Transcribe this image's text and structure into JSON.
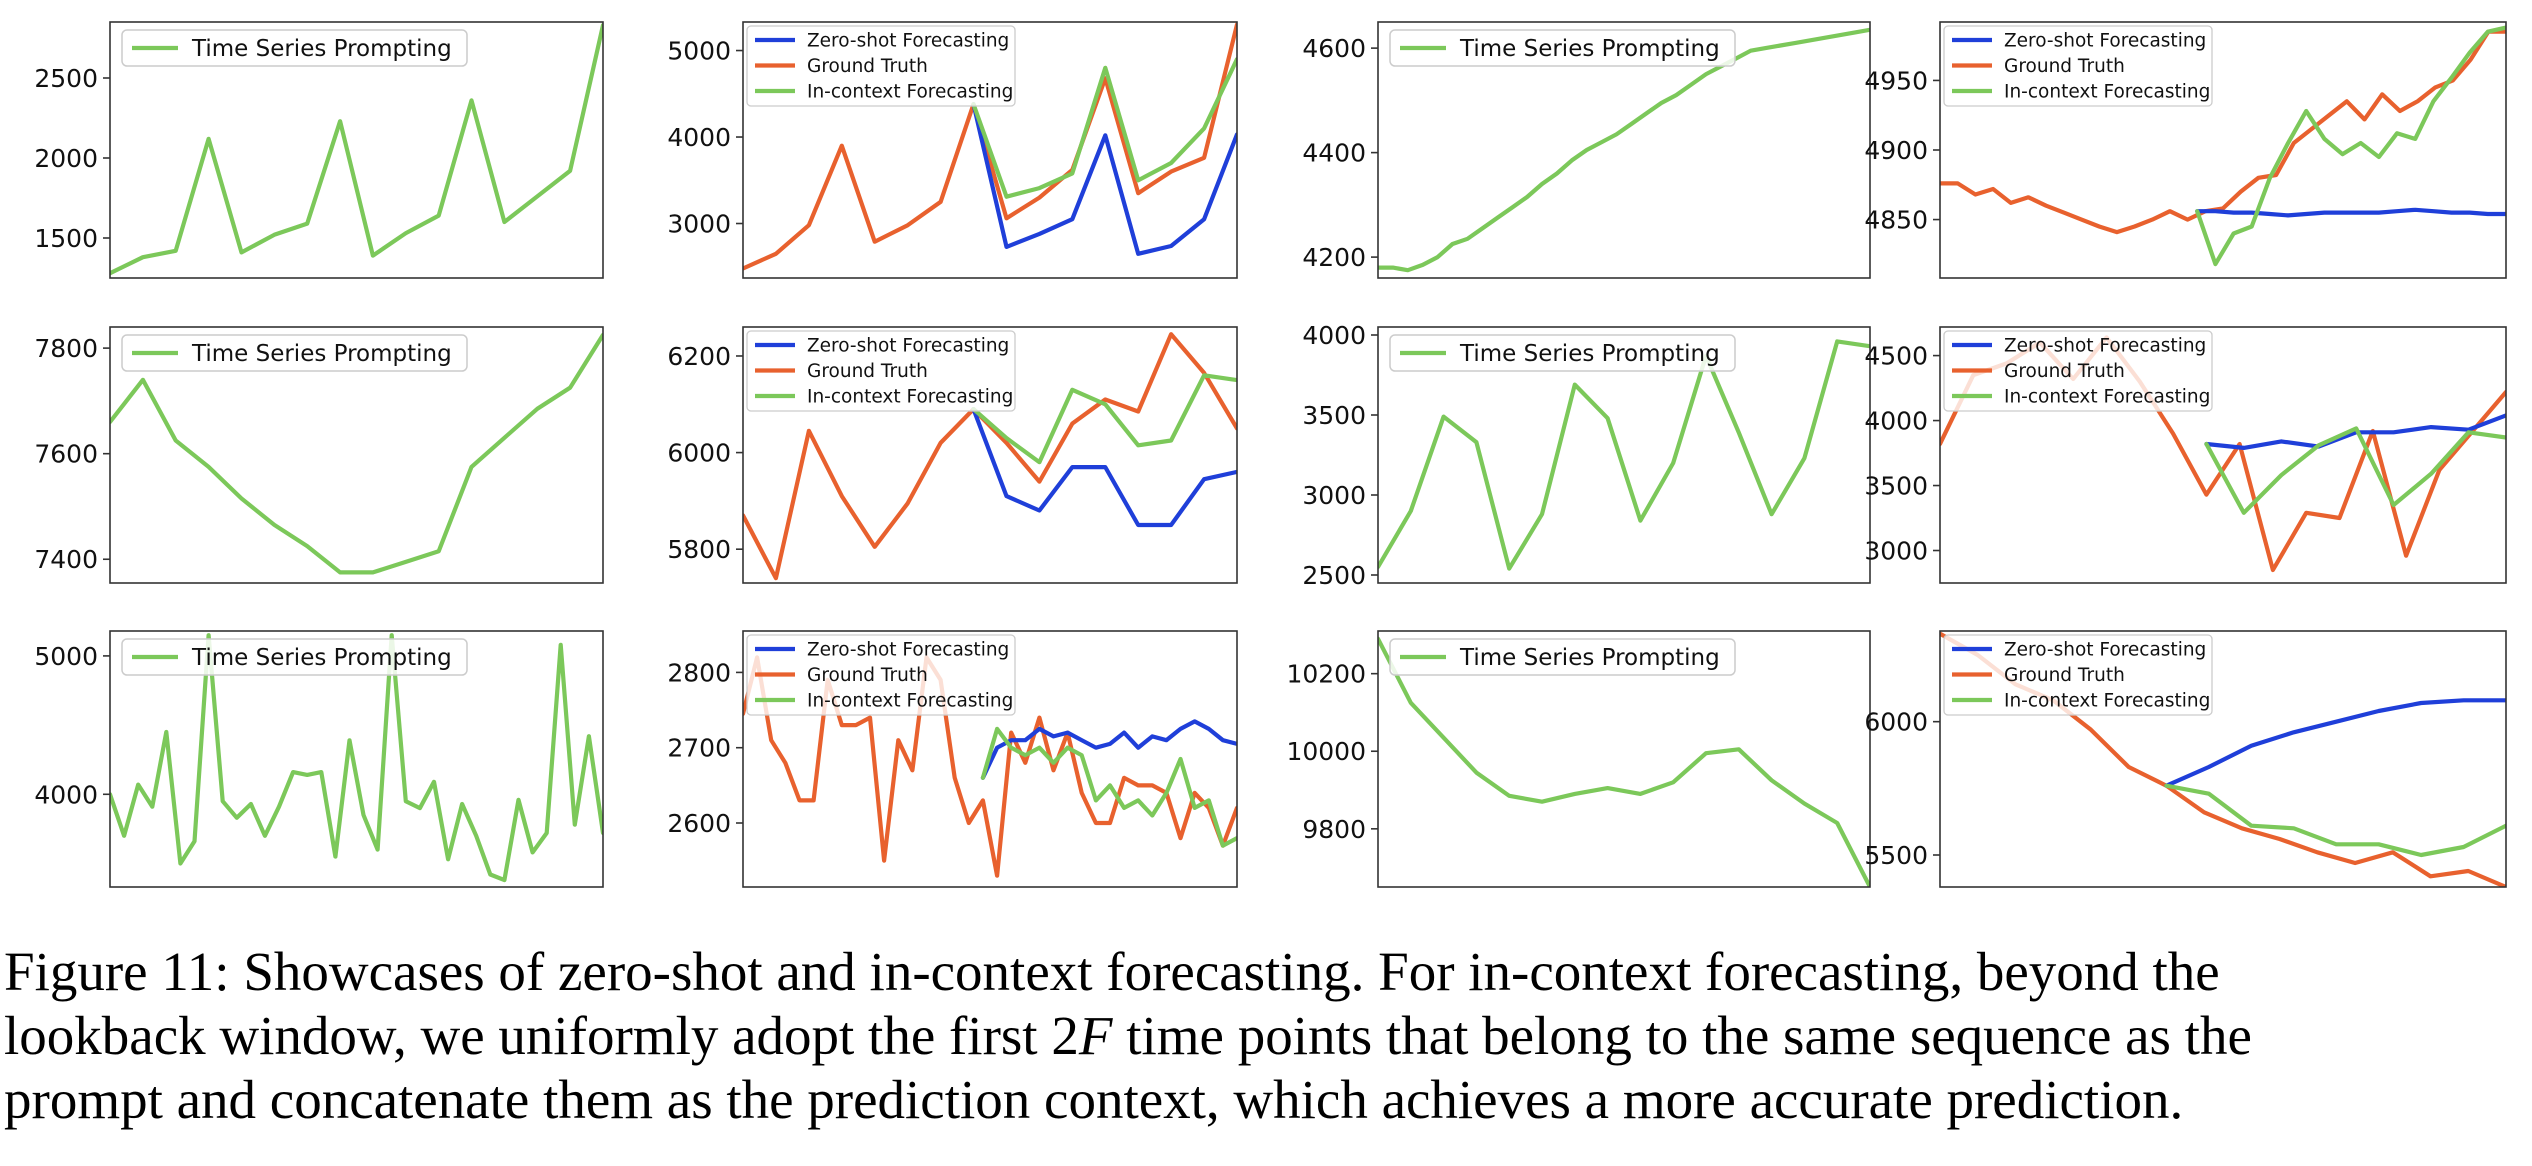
{
  "colors": {
    "zero_shot": "#1f3fd9",
    "ground_truth": "#e8612e",
    "in_context": "#7cc85a",
    "prompting": "#7cc85a",
    "axis": "#333333"
  },
  "chart_data": [
    {
      "id": "r1c1",
      "type": "line",
      "ylim": [
        1250,
        2850
      ],
      "yticks": [
        1500,
        2000,
        2500
      ],
      "legend": [
        "Time Series Prompting"
      ],
      "series": [
        {
          "name": "Time Series Prompting",
          "role": "prompting",
          "x_start": 0,
          "x_end": 1,
          "values": [
            1280,
            1380,
            1420,
            2120,
            1410,
            1520,
            1590,
            2230,
            1390,
            1530,
            1640,
            2360,
            1600,
            1760,
            1920,
            2830
          ]
        }
      ]
    },
    {
      "id": "r1c2",
      "type": "line",
      "ylim": [
        2370,
        5330
      ],
      "yticks": [
        3000,
        4000,
        5000
      ],
      "legend": [
        "Zero-shot Forecasting",
        "Ground Truth",
        "In-context Forecasting"
      ],
      "series": [
        {
          "name": "Ground Truth",
          "role": "ground_truth",
          "x_start": 0,
          "x_end": 1,
          "values": [
            2480,
            2650,
            2980,
            3900,
            2790,
            2980,
            3250,
            4380,
            3060,
            3300,
            3620,
            4680,
            3350,
            3600,
            3760,
            5300
          ]
        },
        {
          "name": "Zero-shot Forecasting",
          "role": "zero_shot",
          "x_start": 0.4667,
          "x_end": 1,
          "values": [
            4380,
            2730,
            2880,
            3050,
            4020,
            2650,
            2740,
            3050,
            4030
          ]
        },
        {
          "name": "In-context Forecasting",
          "role": "in_context",
          "x_start": 0.4667,
          "x_end": 1,
          "values": [
            4380,
            3310,
            3410,
            3580,
            4800,
            3500,
            3700,
            4100,
            4900
          ]
        }
      ]
    },
    {
      "id": "r1c3",
      "type": "line",
      "ylim": [
        4160,
        4650
      ],
      "yticks": [
        4200,
        4400,
        4600
      ],
      "legend": [
        "Time Series Prompting"
      ],
      "series": [
        {
          "name": "Time Series Prompting",
          "role": "prompting",
          "x_start": 0,
          "x_end": 1,
          "values": [
            4180,
            4180,
            4175,
            4185,
            4200,
            4225,
            4235,
            4255,
            4275,
            4295,
            4315,
            4340,
            4360,
            4385,
            4405,
            4420,
            4435,
            4455,
            4475,
            4495,
            4510,
            4530,
            4550,
            4565,
            4580,
            4595,
            4600,
            4605,
            4610,
            4615,
            4620,
            4625,
            4630,
            4635
          ]
        }
      ]
    },
    {
      "id": "r1c4",
      "type": "line",
      "ylim": [
        4808,
        4992
      ],
      "yticks": [
        4850,
        4900,
        4950
      ],
      "legend": [
        "Zero-shot Forecasting",
        "Ground Truth",
        "In-context Forecasting"
      ],
      "series": [
        {
          "name": "Ground Truth",
          "role": "ground_truth",
          "x_start": 0,
          "x_end": 1,
          "values": [
            4876,
            4876,
            4868,
            4872,
            4862,
            4866,
            4860,
            4855,
            4850,
            4845,
            4841,
            4845,
            4850,
            4856,
            4850,
            4856,
            4858,
            4870,
            4880,
            4882,
            4905,
            4915,
            4925,
            4935,
            4922,
            4940,
            4928,
            4935,
            4945,
            4950,
            4965,
            4985,
            4985
          ]
        },
        {
          "name": "Zero-shot Forecasting",
          "role": "zero_shot",
          "x_start": 0.4545,
          "x_end": 1,
          "values": [
            4856,
            4856,
            4855,
            4855,
            4854,
            4853,
            4854,
            4855,
            4855,
            4855,
            4855,
            4856,
            4857,
            4856,
            4855,
            4855,
            4854,
            4854
          ]
        },
        {
          "name": "In-context Forecasting",
          "role": "in_context",
          "x_start": 0.4545,
          "x_end": 1,
          "values": [
            4856,
            4818,
            4840,
            4845,
            4880,
            4905,
            4928,
            4908,
            4897,
            4905,
            4895,
            4912,
            4908,
            4935,
            4952,
            4970,
            4985,
            4988
          ]
        }
      ]
    },
    {
      "id": "r2c1",
      "type": "line",
      "ylim": [
        7355,
        7840
      ],
      "yticks": [
        7400,
        7600,
        7800
      ],
      "legend": [
        "Time Series Prompting"
      ],
      "series": [
        {
          "name": "Time Series Prompting",
          "role": "prompting",
          "x_start": 0,
          "x_end": 1,
          "values": [
            7660,
            7740,
            7625,
            7575,
            7515,
            7465,
            7425,
            7375,
            7375,
            7395,
            7415,
            7575,
            7630,
            7685,
            7725,
            7825
          ]
        }
      ]
    },
    {
      "id": "r2c2",
      "type": "line",
      "ylim": [
        5730,
        6260
      ],
      "yticks": [
        5800,
        6000,
        6200
      ],
      "legend": [
        "Zero-shot Forecasting",
        "Ground Truth",
        "In-context Forecasting"
      ],
      "series": [
        {
          "name": "Ground Truth",
          "role": "ground_truth",
          "x_start": 0,
          "x_end": 1,
          "values": [
            5870,
            5740,
            6045,
            5910,
            5805,
            5895,
            6020,
            6090,
            6020,
            5940,
            6060,
            6110,
            6085,
            6245,
            6165,
            6050
          ]
        },
        {
          "name": "Zero-shot Forecasting",
          "role": "zero_shot",
          "x_start": 0.4667,
          "x_end": 1,
          "values": [
            6090,
            5910,
            5880,
            5970,
            5970,
            5850,
            5850,
            5945,
            5960
          ]
        },
        {
          "name": "In-context Forecasting",
          "role": "in_context",
          "x_start": 0.4667,
          "x_end": 1,
          "values": [
            6090,
            6030,
            5980,
            6130,
            6100,
            6015,
            6025,
            6160,
            6150
          ]
        }
      ]
    },
    {
      "id": "r2c3",
      "type": "line",
      "ylim": [
        2450,
        4050
      ],
      "yticks": [
        2500,
        3000,
        3500,
        4000
      ],
      "legend": [
        "Time Series Prompting"
      ],
      "series": [
        {
          "name": "Time Series Prompting",
          "role": "prompting",
          "x_start": 0,
          "x_end": 1,
          "values": [
            2550,
            2900,
            3490,
            3330,
            2540,
            2880,
            3690,
            3480,
            2840,
            3200,
            3870,
            3390,
            2880,
            3230,
            3960,
            3930
          ]
        }
      ]
    },
    {
      "id": "r2c4",
      "type": "line",
      "ylim": [
        2750,
        4720
      ],
      "yticks": [
        3000,
        3500,
        4000,
        4500
      ],
      "legend": [
        "Zero-shot Forecasting",
        "Ground Truth",
        "In-context Forecasting"
      ],
      "series": [
        {
          "name": "Ground Truth",
          "role": "ground_truth",
          "x_start": 0,
          "x_end": 1,
          "values": [
            3820,
            4350,
            4440,
            4600,
            4320,
            4640,
            4300,
            3900,
            3430,
            3820,
            2850,
            3290,
            3250,
            3920,
            2960,
            3620,
            3920,
            4220
          ]
        },
        {
          "name": "Zero-shot Forecasting",
          "role": "zero_shot",
          "x_start": 0.4706,
          "x_end": 1,
          "values": [
            3820,
            3790,
            3840,
            3800,
            3910,
            3910,
            3950,
            3930,
            4040
          ]
        },
        {
          "name": "In-context Forecasting",
          "role": "in_context",
          "x_start": 0.4706,
          "x_end": 1,
          "values": [
            3820,
            3290,
            3580,
            3810,
            3940,
            3350,
            3590,
            3910,
            3870
          ]
        }
      ]
    },
    {
      "id": "r3c1",
      "type": "line",
      "ylim": [
        3330,
        5180
      ],
      "yticks": [
        4000,
        5000
      ],
      "legend": [
        "Time Series Prompting"
      ],
      "series": [
        {
          "name": "Time Series Prompting",
          "role": "prompting",
          "x_start": 0,
          "x_end": 1,
          "values": [
            4000,
            3700,
            4070,
            3910,
            4450,
            3500,
            3660,
            5150,
            3950,
            3830,
            3930,
            3700,
            3910,
            4160,
            4140,
            4160,
            3550,
            4390,
            3850,
            3600,
            5150,
            3950,
            3900,
            4090,
            3530,
            3930,
            3700,
            3420,
            3380,
            3960,
            3580,
            3720,
            5080,
            3780,
            4420,
            3720
          ]
        }
      ]
    },
    {
      "id": "r3c2",
      "type": "line",
      "ylim": [
        2515,
        2855
      ],
      "yticks": [
        2600,
        2700,
        2800
      ],
      "legend": [
        "Zero-shot Forecasting",
        "Ground Truth",
        "In-context Forecasting"
      ],
      "series": [
        {
          "name": "Ground Truth",
          "role": "ground_truth",
          "x_start": 0,
          "x_end": 1,
          "values": [
            2745,
            2820,
            2710,
            2680,
            2630,
            2630,
            2790,
            2730,
            2730,
            2740,
            2550,
            2710,
            2670,
            2820,
            2790,
            2660,
            2600,
            2630,
            2530,
            2720,
            2680,
            2740,
            2670,
            2720,
            2640,
            2600,
            2600,
            2660,
            2650,
            2650,
            2640,
            2580,
            2640,
            2620,
            2570,
            2620
          ]
        },
        {
          "name": "Zero-shot Forecasting",
          "role": "zero_shot",
          "x_start": 0.4857,
          "x_end": 1,
          "values": [
            2660,
            2700,
            2710,
            2710,
            2725,
            2715,
            2720,
            2710,
            2700,
            2705,
            2720,
            2700,
            2715,
            2710,
            2725,
            2735,
            2725,
            2710,
            2705
          ]
        },
        {
          "name": "In-context Forecasting",
          "role": "in_context",
          "x_start": 0.4857,
          "x_end": 1,
          "values": [
            2660,
            2725,
            2700,
            2690,
            2700,
            2680,
            2700,
            2690,
            2630,
            2650,
            2620,
            2630,
            2610,
            2640,
            2685,
            2620,
            2630,
            2570,
            2580
          ]
        }
      ]
    },
    {
      "id": "r3c3",
      "type": "line",
      "ylim": [
        9650,
        10310
      ],
      "yticks": [
        9800,
        10000,
        10200
      ],
      "legend": [
        "Time Series Prompting"
      ],
      "series": [
        {
          "name": "Time Series Prompting",
          "role": "prompting",
          "x_start": 0,
          "x_end": 1,
          "values": [
            10290,
            10125,
            10035,
            9945,
            9885,
            9870,
            9890,
            9905,
            9890,
            9920,
            9995,
            10005,
            9925,
            9865,
            9815,
            9650
          ]
        }
      ]
    },
    {
      "id": "r3c4",
      "type": "line",
      "ylim": [
        5380,
        6340
      ],
      "yticks": [
        5500,
        6000
      ],
      "legend": [
        "Zero-shot Forecasting",
        "Ground Truth",
        "In-context Forecasting"
      ],
      "series": [
        {
          "name": "Ground Truth",
          "role": "ground_truth",
          "x_start": 0,
          "x_end": 1,
          "values": [
            6330,
            6250,
            6140,
            6080,
            5970,
            5830,
            5760,
            5660,
            5600,
            5560,
            5510,
            5470,
            5510,
            5420,
            5440,
            5380
          ]
        },
        {
          "name": "Zero-shot Forecasting",
          "role": "zero_shot",
          "x_start": 0.4,
          "x_end": 1,
          "values": [
            5760,
            5830,
            5910,
            5960,
            6000,
            6040,
            6070,
            6080,
            6080
          ]
        },
        {
          "name": "In-context Forecasting",
          "role": "in_context",
          "x_start": 0.4,
          "x_end": 1,
          "values": [
            5760,
            5730,
            5610,
            5600,
            5540,
            5540,
            5500,
            5530,
            5610
          ]
        }
      ]
    }
  ],
  "caption": {
    "line1": "Figure 11: Showcases of zero-shot and in-context forecasting. For in-context forecasting, beyond the",
    "line2_before": "lookback window, we uniformly adopt the first ",
    "line2_math_num": "2",
    "line2_math_var": "F",
    "line2_after": " time points that belong to the same sequence as the",
    "line3": "prompt and concatenate them as the prediction context, which achieves a more accurate prediction."
  }
}
